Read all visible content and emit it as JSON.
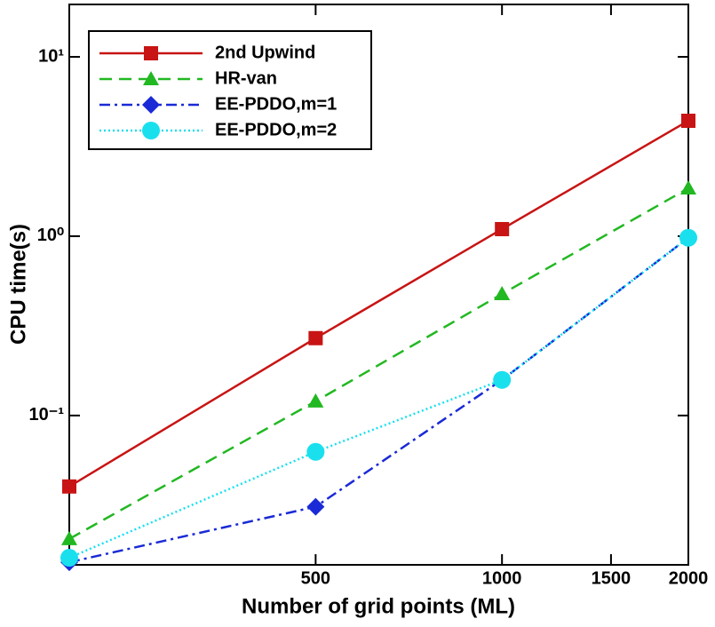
{
  "chart_data": {
    "type": "line",
    "x_label": "Number of grid points (ML)",
    "y_label": "CPU time(s)",
    "x_scale": "log",
    "y_scale": "log",
    "x": [
      200,
      500,
      1000,
      2000
    ],
    "xlim": [
      200,
      2000
    ],
    "xticks": [
      500,
      1000,
      1500,
      2000
    ],
    "ylim": [
      0.0147,
      19.6
    ],
    "yticks": [
      {
        "value": 0.1,
        "label": "10⁻¹"
      },
      {
        "value": 1,
        "label": "10⁰"
      },
      {
        "value": 10,
        "label": "10¹"
      }
    ],
    "legend": "top-left",
    "series": [
      {
        "name": "2nd Upwind",
        "color": "#c81414",
        "marker": "square",
        "dash": "solid",
        "values": [
          0.0402,
          0.27,
          1.095,
          4.4
        ]
      },
      {
        "name": "HR-van",
        "color": "#22b822",
        "marker": "triangle",
        "dash": "dashed",
        "values": [
          0.0205,
          0.12,
          0.476,
          1.85
        ]
      },
      {
        "name": "EE-PDDO,m=1",
        "color": "#1a2ad6",
        "marker": "diamond",
        "dash": "dashdot",
        "values": [
          0.0152,
          0.031,
          0.158,
          0.98
        ]
      },
      {
        "name": "EE-PDDO,m=2",
        "color": "#1ae0ee",
        "marker": "circle",
        "dash": "dotted",
        "values": [
          0.0161,
          0.0627,
          0.158,
          0.98
        ]
      }
    ]
  }
}
